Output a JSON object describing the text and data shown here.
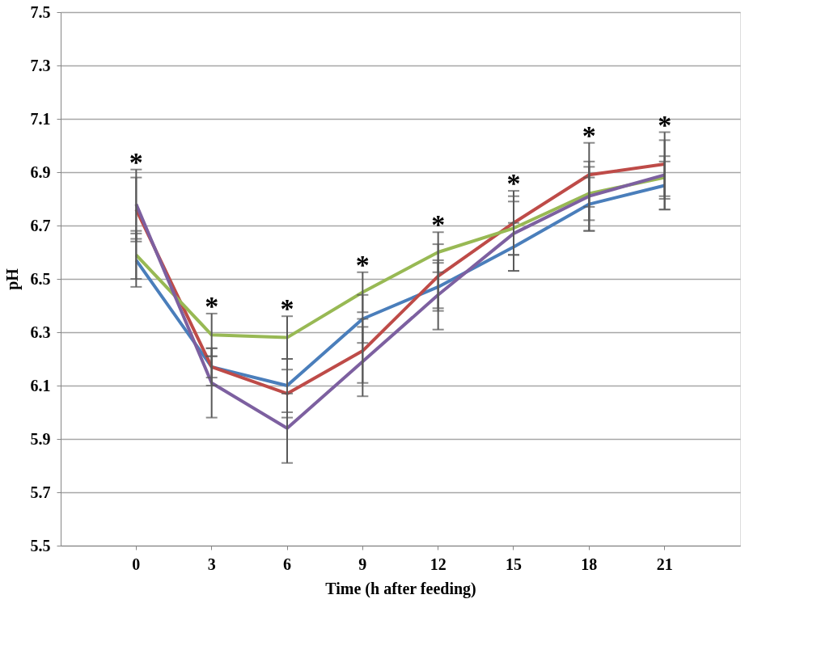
{
  "chart_data": {
    "type": "line",
    "xlabel": "Time (h after feeding)",
    "ylabel": "pH",
    "categories": [
      "0",
      "3",
      "6",
      "9",
      "12",
      "15",
      "18",
      "21"
    ],
    "series": [
      {
        "color": "#4a7ebb",
        "values": [
          6.57,
          6.17,
          6.1,
          6.35,
          6.47,
          6.62,
          6.78,
          6.85
        ],
        "errors": [
          0.1,
          0.04,
          0.1,
          0.09,
          0.09,
          0.09,
          0.1,
          0.09
        ]
      },
      {
        "color": "#be4b48",
        "values": [
          6.76,
          6.17,
          6.07,
          6.23,
          6.51,
          6.71,
          6.89,
          6.93
        ],
        "errors": [
          0.12,
          0.07,
          0.09,
          0.12,
          0.12,
          0.12,
          0.12,
          0.12
        ]
      },
      {
        "color": "#98b954",
        "values": [
          6.59,
          6.29,
          6.28,
          6.45,
          6.6,
          6.69,
          6.82,
          6.88
        ],
        "errors": [
          0.09,
          0.08,
          0.08,
          0.075,
          0.075,
          0.1,
          0.1,
          0.08
        ]
      },
      {
        "color": "#7d60a0",
        "values": [
          6.78,
          6.11,
          5.94,
          6.19,
          6.44,
          6.67,
          6.81,
          6.89
        ],
        "errors": [
          0.13,
          0.13,
          0.13,
          0.13,
          0.13,
          0.14,
          0.13,
          0.13
        ]
      }
    ],
    "ylim": [
      5.5,
      7.5
    ],
    "yticks": [
      5.5,
      5.7,
      5.9,
      6.1,
      6.3,
      6.5,
      6.7,
      6.9,
      7.1,
      7.3,
      7.5
    ],
    "grid": "y",
    "legend": false,
    "marker": "none",
    "line_style": "solid",
    "annotations": [
      "*",
      "*",
      "*",
      "*",
      "*",
      "*",
      "*",
      "*"
    ]
  }
}
